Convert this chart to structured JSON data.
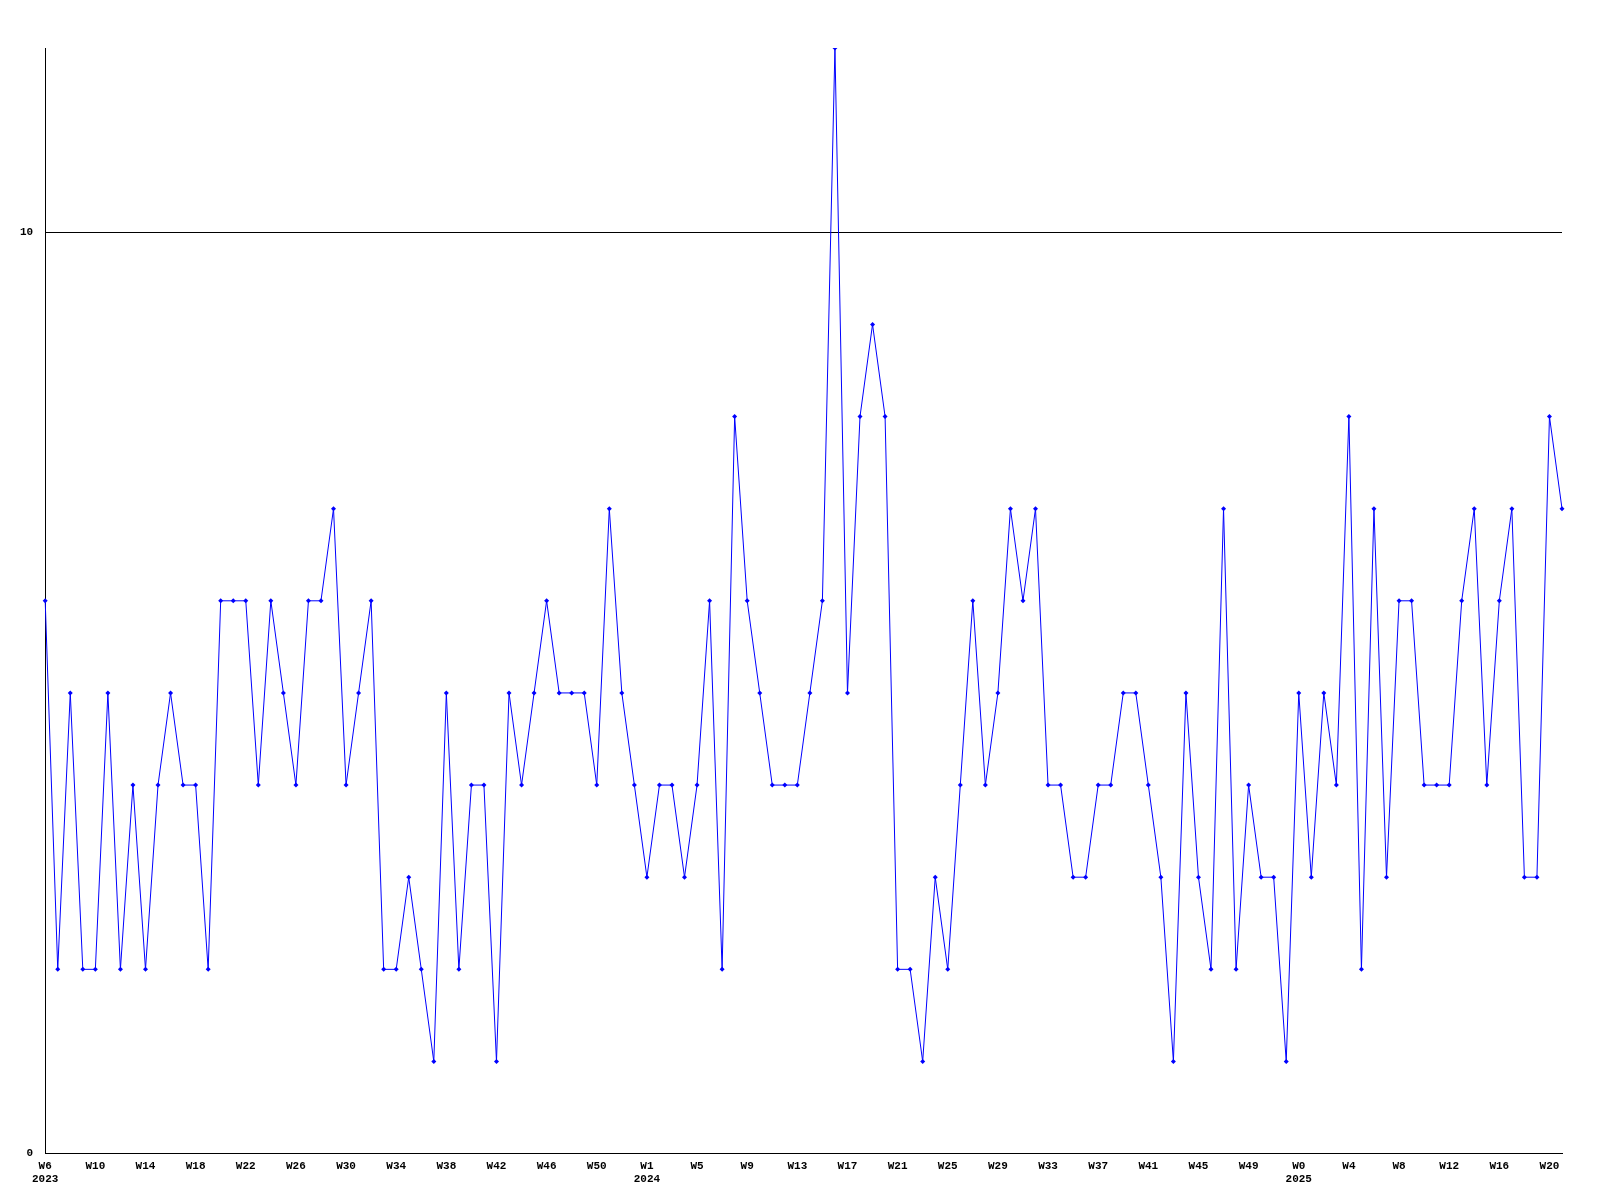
{
  "chart_data": {
    "type": "line",
    "categories": [
      "W6\n2023",
      null,
      null,
      null,
      "W10",
      null,
      null,
      null,
      "W14",
      null,
      null,
      null,
      "W18",
      null,
      null,
      null,
      "W22",
      null,
      null,
      null,
      "W26",
      null,
      null,
      null,
      "W30",
      null,
      null,
      null,
      "W34",
      null,
      null,
      null,
      "W38",
      null,
      null,
      null,
      "W42",
      null,
      null,
      null,
      "W46",
      null,
      null,
      null,
      "W50",
      null,
      null,
      null,
      "W1\n2024",
      null,
      null,
      null,
      "W5",
      null,
      null,
      null,
      "W9",
      null,
      null,
      null,
      "W13",
      null,
      null,
      null,
      "W17",
      null,
      null,
      null,
      "W21",
      null,
      null,
      null,
      "W25",
      null,
      null,
      null,
      "W29",
      null,
      null,
      null,
      "W33",
      null,
      null,
      null,
      "W37",
      null,
      null,
      null,
      "W41",
      null,
      null,
      null,
      "W45",
      null,
      null,
      null,
      "W49",
      null,
      null,
      null,
      "W0\n2025",
      null,
      null,
      null,
      "W4",
      null,
      null,
      null,
      "W8",
      null,
      null,
      null,
      "W12",
      null,
      null,
      null,
      "W16",
      null,
      null,
      null,
      "W20",
      null
    ],
    "series": [
      {
        "color": "#0000ff",
        "values": [
          6,
          2,
          5,
          2,
          2,
          5,
          2,
          4,
          2,
          4,
          5,
          4,
          4,
          2,
          6,
          6,
          6,
          4,
          6,
          5,
          4,
          6,
          6,
          7,
          4,
          5,
          6,
          2,
          2,
          3,
          2,
          1,
          5,
          2,
          4,
          4,
          1,
          5,
          4,
          5,
          6,
          5,
          5,
          5,
          4,
          7,
          5,
          4,
          3,
          4,
          4,
          3,
          4,
          6,
          2,
          8,
          6,
          5,
          4,
          4,
          4,
          5,
          6,
          12,
          5,
          8,
          9,
          8,
          2,
          2,
          1,
          3,
          2,
          4,
          6,
          4,
          5,
          7,
          6,
          7,
          4,
          4,
          3,
          3,
          4,
          4,
          5,
          5,
          4,
          3,
          1,
          5,
          3,
          2,
          7,
          2,
          4,
          3,
          3,
          1,
          5,
          3,
          5,
          4,
          8,
          2,
          7,
          3,
          6,
          6,
          4,
          4,
          4,
          6,
          7,
          4,
          6,
          7,
          3,
          3,
          8,
          7
        ]
      }
    ],
    "ylim": [
      0,
      12
    ],
    "yticks": [
      0,
      10
    ],
    "grid": "y",
    "marker": "diamond",
    "line_style": "solid"
  }
}
